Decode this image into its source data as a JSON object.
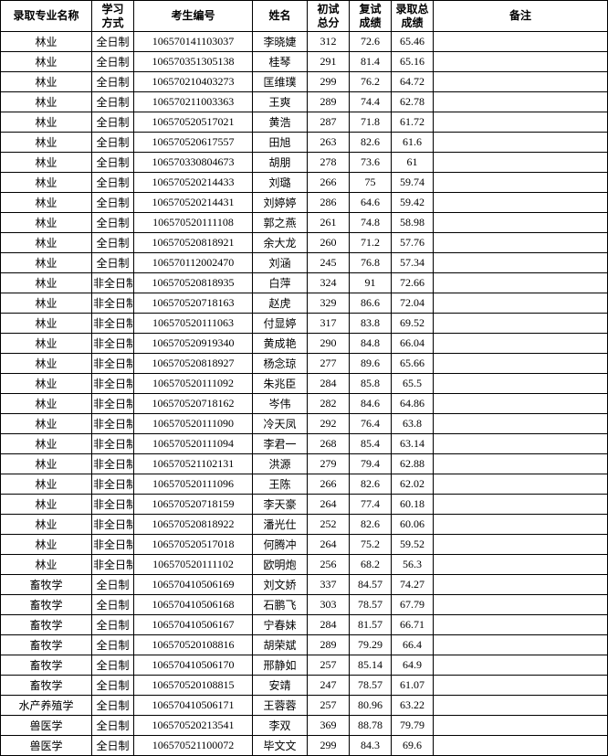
{
  "headers": {
    "major": "录取专业名称",
    "mode": "学习\n方式",
    "id": "考生编号",
    "name": "姓名",
    "score1": "初试\n总分",
    "score2": "复试\n成绩",
    "score3": "录取总\n成绩",
    "remark": "备注"
  },
  "border_color": "#000000",
  "background_color": "#ffffff",
  "text_color": "#000000",
  "watermark_color": "#79a8d8",
  "font_size": 12,
  "header_font_size": 12,
  "rows": [
    [
      "林业",
      "全日制",
      "106570141103037",
      "李晓婕",
      "312",
      "72.6",
      "65.46",
      ""
    ],
    [
      "林业",
      "全日制",
      "106570351305138",
      "桂琴",
      "291",
      "81.4",
      "65.16",
      ""
    ],
    [
      "林业",
      "全日制",
      "106570210403273",
      "匡维璞",
      "299",
      "76.2",
      "64.72",
      ""
    ],
    [
      "林业",
      "全日制",
      "106570211003363",
      "王爽",
      "289",
      "74.4",
      "62.78",
      ""
    ],
    [
      "林业",
      "全日制",
      "106570520517021",
      "黄浩",
      "287",
      "71.8",
      "61.72",
      ""
    ],
    [
      "林业",
      "全日制",
      "106570520617557",
      "田旭",
      "263",
      "82.6",
      "61.6",
      ""
    ],
    [
      "林业",
      "全日制",
      "106570330804673",
      "胡朋",
      "278",
      "73.6",
      "61",
      ""
    ],
    [
      "林业",
      "全日制",
      "106570520214433",
      "刘璐",
      "266",
      "75",
      "59.74",
      ""
    ],
    [
      "林业",
      "全日制",
      "106570520214431",
      "刘婷婷",
      "286",
      "64.6",
      "59.42",
      ""
    ],
    [
      "林业",
      "全日制",
      "106570520111108",
      "郭之燕",
      "261",
      "74.8",
      "58.98",
      ""
    ],
    [
      "林业",
      "全日制",
      "106570520818921",
      "余大龙",
      "260",
      "71.2",
      "57.76",
      ""
    ],
    [
      "林业",
      "全日制",
      "106570112002470",
      "刘涵",
      "245",
      "76.8",
      "57.34",
      ""
    ],
    [
      "林业",
      "非全日制",
      "106570520818935",
      "白萍",
      "324",
      "91",
      "72.66",
      ""
    ],
    [
      "林业",
      "非全日制",
      "106570520718163",
      "赵虎",
      "329",
      "86.6",
      "72.04",
      ""
    ],
    [
      "林业",
      "非全日制",
      "106570520111063",
      "付显婷",
      "317",
      "83.8",
      "69.52",
      ""
    ],
    [
      "林业",
      "非全日制",
      "106570520919340",
      "黄成艳",
      "290",
      "84.8",
      "66.04",
      ""
    ],
    [
      "林业",
      "非全日制",
      "106570520818927",
      "杨念琼",
      "277",
      "89.6",
      "65.66",
      ""
    ],
    [
      "林业",
      "非全日制",
      "106570520111092",
      "朱兆臣",
      "284",
      "85.8",
      "65.5",
      ""
    ],
    [
      "林业",
      "非全日制",
      "106570520718162",
      "岑伟",
      "282",
      "84.6",
      "64.86",
      ""
    ],
    [
      "林业",
      "非全日制",
      "106570520111090",
      "冷天凤",
      "292",
      "76.4",
      "63.8",
      ""
    ],
    [
      "林业",
      "非全日制",
      "106570520111094",
      "李君一",
      "268",
      "85.4",
      "63.14",
      ""
    ],
    [
      "林业",
      "非全日制",
      "106570521102131",
      "洪源",
      "279",
      "79.4",
      "62.88",
      ""
    ],
    [
      "林业",
      "非全日制",
      "106570520111096",
      "王陈",
      "266",
      "82.6",
      "62.02",
      ""
    ],
    [
      "林业",
      "非全日制",
      "106570520718159",
      "李天豪",
      "264",
      "77.4",
      "60.18",
      ""
    ],
    [
      "林业",
      "非全日制",
      "106570520818922",
      "潘光仕",
      "252",
      "82.6",
      "60.06",
      ""
    ],
    [
      "林业",
      "非全日制",
      "106570520517018",
      "何腾冲",
      "264",
      "75.2",
      "59.52",
      ""
    ],
    [
      "林业",
      "非全日制",
      "106570520111102",
      "欧明炮",
      "256",
      "68.2",
      "56.3",
      ""
    ],
    [
      "畜牧学",
      "全日制",
      "106570410506169",
      "刘文娇",
      "337",
      "84.57",
      "74.27",
      ""
    ],
    [
      "畜牧学",
      "全日制",
      "106570410506168",
      "石鹏飞",
      "303",
      "78.57",
      "67.79",
      ""
    ],
    [
      "畜牧学",
      "全日制",
      "106570410506167",
      "宁春妹",
      "284",
      "81.57",
      "66.71",
      ""
    ],
    [
      "畜牧学",
      "全日制",
      "106570520108816",
      "胡荣斌",
      "289",
      "79.29",
      "66.4",
      ""
    ],
    [
      "畜牧学",
      "全日制",
      "106570410506170",
      "邢静如",
      "257",
      "85.14",
      "64.9",
      ""
    ],
    [
      "畜牧学",
      "全日制",
      "106570520108815",
      "安靖",
      "247",
      "78.57",
      "61.07",
      ""
    ],
    [
      "水产养殖学",
      "全日制",
      "106570410506171",
      "王蓉蓉",
      "257",
      "80.96",
      "63.22",
      ""
    ],
    [
      "兽医学",
      "全日制",
      "106570520213541",
      "李双",
      "369",
      "88.78",
      "79.79",
      ""
    ],
    [
      "兽医学",
      "全日制",
      "106570521100072",
      "毕文文",
      "299",
      "84.3",
      "69.6",
      ""
    ]
  ]
}
